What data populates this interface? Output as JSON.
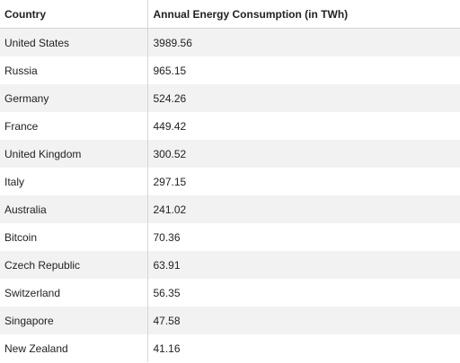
{
  "table": {
    "headers": [
      "Country",
      "Annual Energy Consumption (in TWh)"
    ],
    "rows": [
      [
        "United States",
        "3989.56"
      ],
      [
        "Russia",
        "965.15"
      ],
      [
        "Germany",
        "524.26"
      ],
      [
        "France",
        "449.42"
      ],
      [
        "United Kingdom",
        "300.52"
      ],
      [
        "Italy",
        "297.15"
      ],
      [
        "Australia",
        "241.02"
      ],
      [
        "Bitcoin",
        "70.36"
      ],
      [
        "Czech Republic",
        "63.91"
      ],
      [
        "Switzerland",
        "56.35"
      ],
      [
        "Singapore",
        "47.58"
      ],
      [
        "New Zealand",
        "41.16"
      ]
    ]
  }
}
